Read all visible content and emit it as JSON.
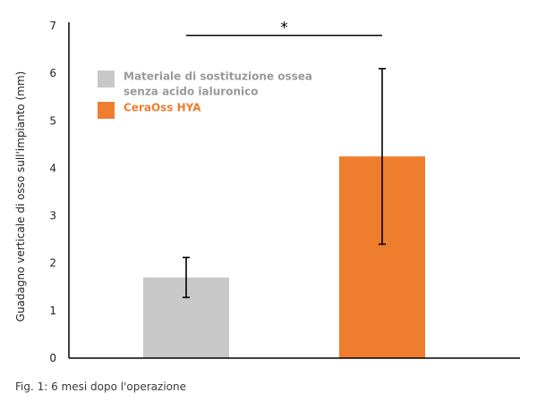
{
  "chart_data": {
    "type": "bar",
    "categories": [
      "Materiale di sostituzione ossea senza acido ialuronico",
      "CeraOss HYA"
    ],
    "series": [
      {
        "values": [
          1.7,
          4.25
        ],
        "errors": [
          0.42,
          1.85
        ],
        "colors": [
          "#c8c8c8",
          "#ee7d2e"
        ]
      }
    ],
    "ylabel": "Guadagno verticale di osso sull'impianto (mm)",
    "ylim": [
      0,
      7
    ],
    "yticks": [
      0,
      1,
      2,
      3,
      4,
      5,
      6,
      7
    ],
    "grid": false,
    "legend": {
      "placement": "top-left",
      "entries": [
        {
          "lines": [
            "Materiale di sostituzione ossea",
            "senza acido ialuronico"
          ],
          "color": "#c8c8c8",
          "text_color": "#9a9a9a"
        },
        {
          "lines": [
            "CeraOss HYA"
          ],
          "color": "#ee7d2e",
          "text_color": "#ee7d2e"
        }
      ]
    },
    "annotation": {
      "text": "*",
      "between": [
        0,
        1
      ],
      "y": 6.8
    }
  },
  "caption": "Fig. 1: 6 mesi dopo l'operazione"
}
